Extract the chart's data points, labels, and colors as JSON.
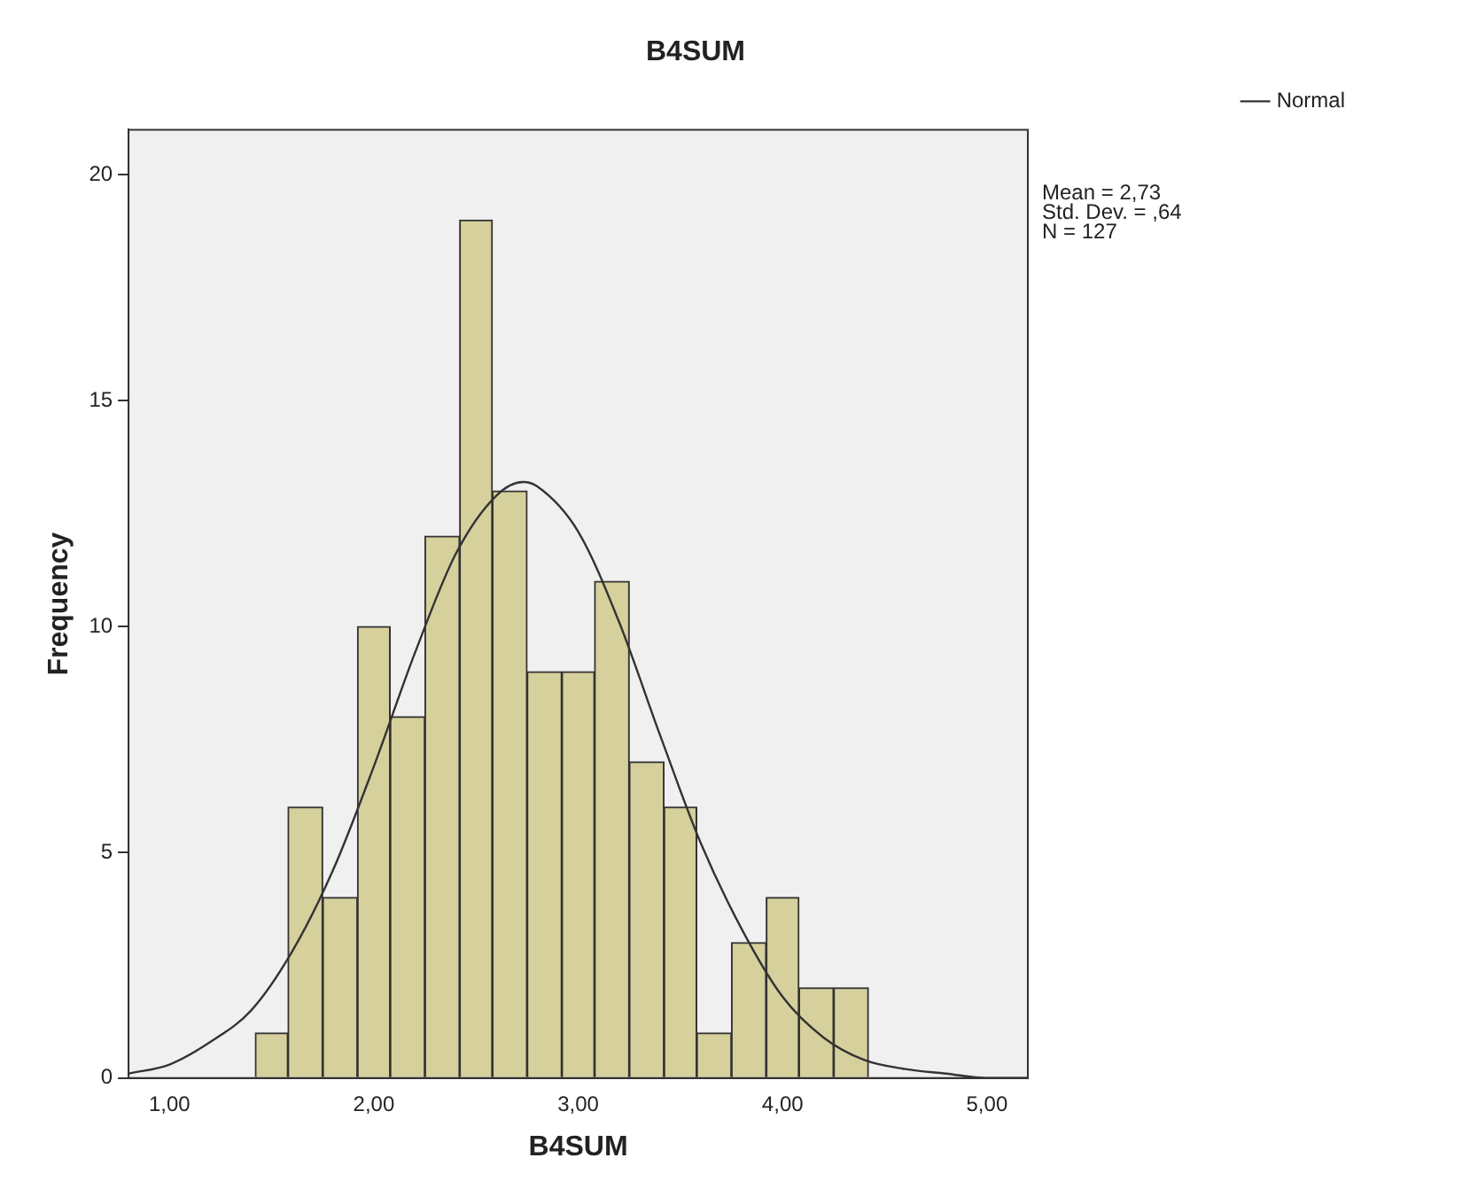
{
  "chart_data": {
    "type": "histogram",
    "title": "B4SUM",
    "xlabel": "B4SUM",
    "ylabel": "Frequency",
    "bins": [
      1.42,
      1.58,
      1.75,
      1.92,
      2.08,
      2.25,
      2.42,
      2.58,
      2.75,
      2.92,
      3.08,
      3.25,
      3.42,
      3.58,
      3.75,
      3.92,
      4.08,
      4.25,
      4.42
    ],
    "values": [
      1,
      6,
      4,
      10,
      8,
      12,
      19,
      13,
      9,
      9,
      11,
      7,
      6,
      1,
      3,
      4,
      2,
      2
    ],
    "color": "#d6d09c",
    "series": [
      {
        "name": "Normal",
        "type": "line",
        "color": "#333333",
        "x": [
          0.8,
          1.0,
          1.2,
          1.4,
          1.6,
          1.8,
          2.0,
          2.2,
          2.4,
          2.6,
          2.73,
          2.8,
          3.0,
          3.2,
          3.4,
          3.6,
          3.8,
          4.0,
          4.2,
          4.4,
          4.6,
          4.8,
          5.0,
          5.2
        ],
        "values": [
          0.1,
          0.3,
          0.8,
          1.5,
          2.8,
          4.6,
          6.9,
          9.4,
          11.6,
          12.9,
          13.2,
          13.1,
          12.1,
          10.1,
          7.6,
          5.2,
          3.3,
          1.8,
          0.9,
          0.4,
          0.2,
          0.1,
          0.0,
          0.0
        ]
      }
    ],
    "xlim": [
      0.8,
      5.2
    ],
    "xticks": [
      {
        "value": 1,
        "label": "1,00"
      },
      {
        "value": 2,
        "label": "2,00"
      },
      {
        "value": 3,
        "label": "3,00"
      },
      {
        "value": 4,
        "label": "4,00"
      },
      {
        "value": 5,
        "label": "5,00"
      }
    ],
    "ylim": [
      0,
      21
    ],
    "yticks": [
      0,
      5,
      10,
      15,
      20
    ],
    "grid": false,
    "legend": "top right",
    "marker": "none",
    "annotations": [
      "Mean = 2,73",
      "Std. Dev. = ,64",
      "N = 127"
    ]
  }
}
